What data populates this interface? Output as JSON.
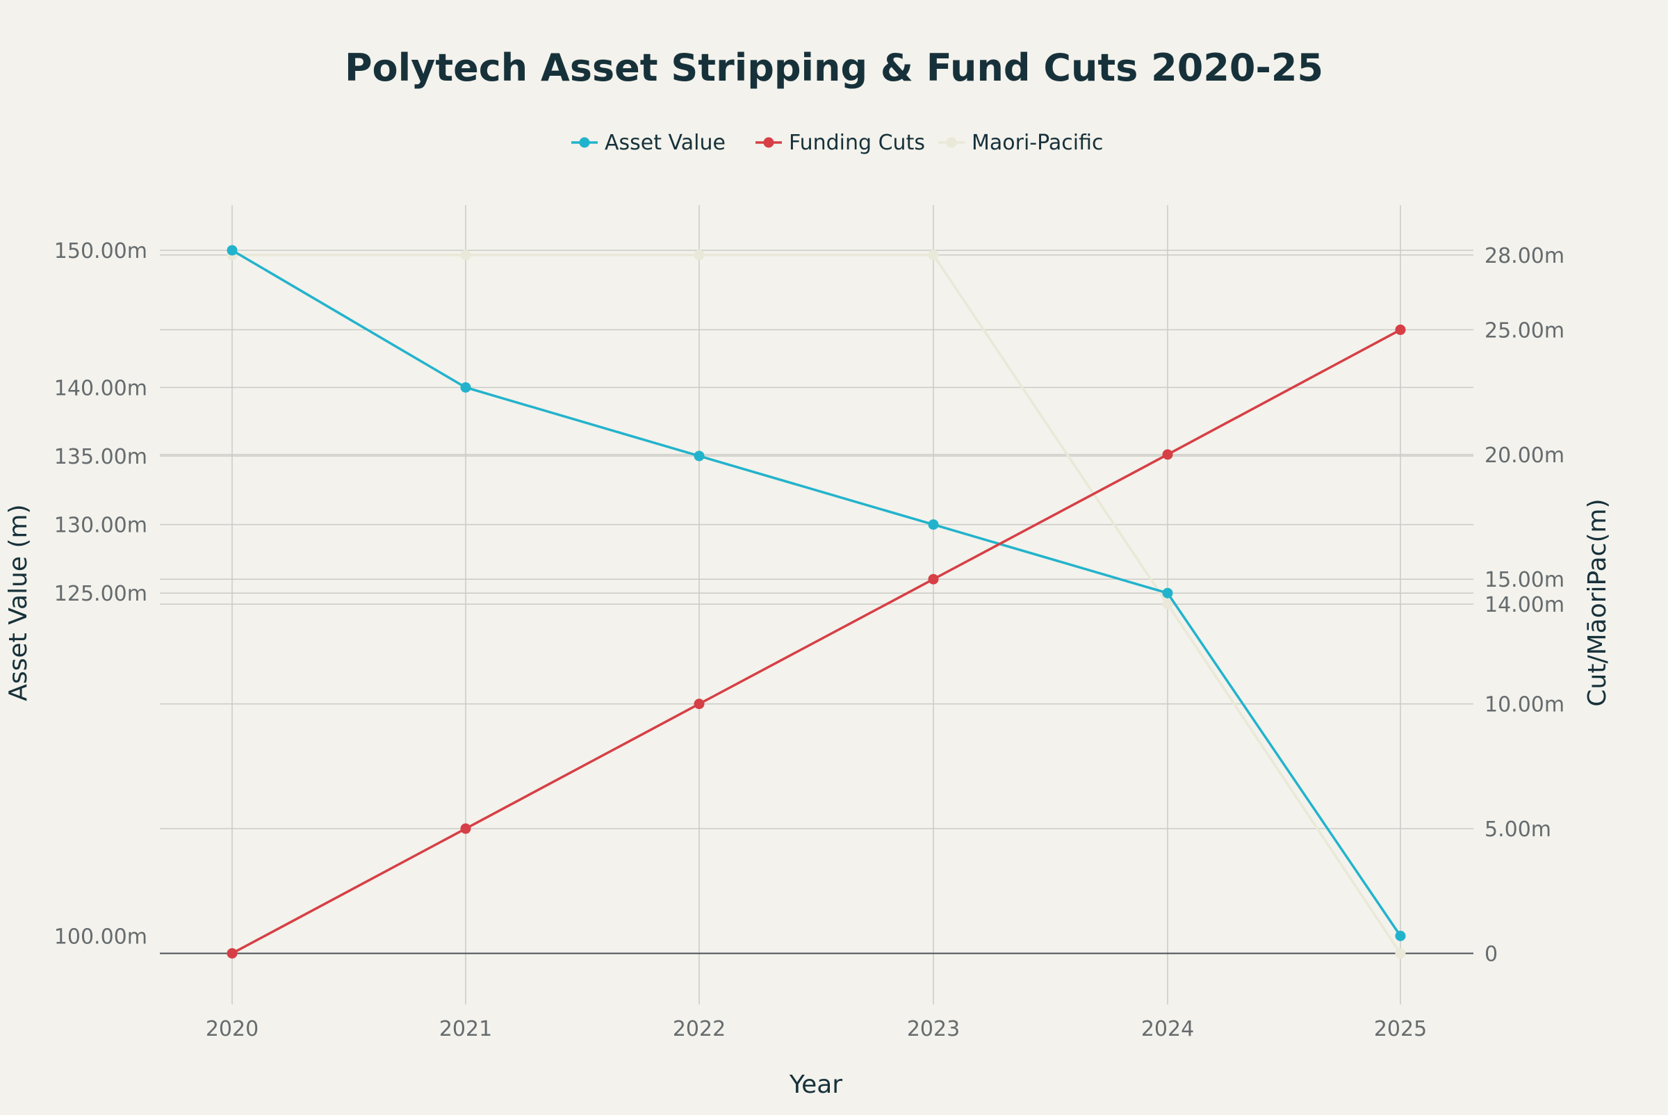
{
  "chart_data": {
    "type": "line",
    "title": "Polytech Asset Stripping & Fund Cuts 2020-25",
    "xlabel": "Year",
    "ylabel_left": "Asset Value (m)",
    "ylabel_right": "Cut/MāoriPac(m)",
    "categories": [
      "2020",
      "2021",
      "2022",
      "2023",
      "2024",
      "2025"
    ],
    "left_axis": {
      "range": [
        95,
        153.3
      ],
      "ticks": [
        100,
        125,
        130,
        135,
        140,
        150
      ],
      "tick_labels": [
        "100.00m",
        "125.00m",
        "130.00m",
        "135.00m",
        "140.00m",
        "150.00m"
      ]
    },
    "right_axis": {
      "range": [
        -2.05,
        30
      ],
      "ticks": [
        0,
        5,
        10,
        14,
        15,
        20,
        25,
        28
      ],
      "tick_labels": [
        "0",
        "5.00m",
        "10.00m",
        "14.00m",
        "15.00m",
        "20.00m",
        "25.00m",
        "28.00m"
      ]
    },
    "grid": true,
    "legend_position": "top-center",
    "series": [
      {
        "name": "Asset Value",
        "axis": "left",
        "color": "#22B3CC",
        "values": [
          150,
          140,
          135,
          130,
          125,
          100
        ]
      },
      {
        "name": "Funding Cuts",
        "axis": "right",
        "color": "#D63F45",
        "values": [
          0,
          5,
          10,
          15,
          20,
          25
        ]
      },
      {
        "name": "Maori-Pacific",
        "axis": "right",
        "color": "#EAE8D8",
        "values": [
          28,
          28,
          28,
          28,
          14,
          0
        ]
      }
    ]
  }
}
